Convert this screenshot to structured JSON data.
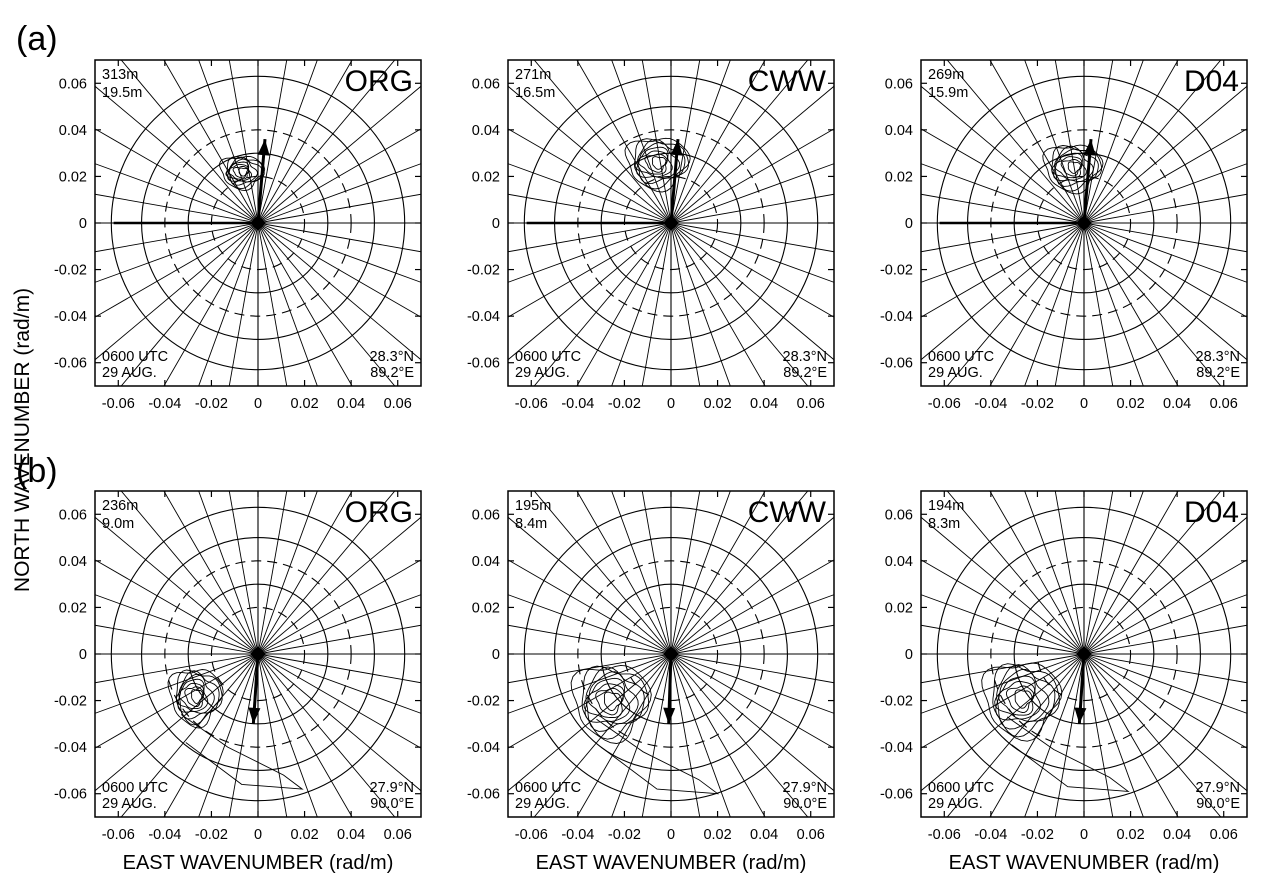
{
  "figure": {
    "ylabel": "NORTH WAVENUMBER (rad/m)",
    "xlabel": "EAST WAVENUMBER (rad/m)",
    "rows": [
      {
        "label": "(a)"
      },
      {
        "label": "(b)"
      }
    ]
  },
  "chart_data": [
    {
      "type": "polar-contour",
      "row": "a",
      "title": "ORG",
      "corner_top": [
        "313m",
        "19.5m"
      ],
      "corner_bottom_left": [
        "0600 UTC",
        "29 AUG."
      ],
      "corner_bottom_right": [
        "28.3°N",
        "89.2°E"
      ],
      "arrow_tip": [
        0.003,
        0.036
      ],
      "extra_ray_end": [
        -0.062,
        0
      ],
      "peak_center": [
        -0.007,
        0.022
      ],
      "spread": [
        0.009,
        0.007
      ],
      "xlim": [
        -0.07,
        0.07
      ],
      "ylim": [
        -0.07,
        0.07
      ],
      "xticks": [
        "-0.06",
        "-0.04",
        "-0.02",
        "0",
        "0.02",
        "0.04",
        "0.06"
      ],
      "yticks": [
        "0.06",
        "0.04",
        "0.02",
        "0",
        "-0.02",
        "-0.04",
        "-0.06"
      ],
      "xlabel": "",
      "ylabel": "NORTH WAVENUMBER (rad/m)"
    },
    {
      "type": "polar-contour",
      "row": "a",
      "title": "CWW",
      "corner_top": [
        "271m",
        "16.5m"
      ],
      "corner_bottom_left": [
        "0600 UTC",
        "29 AUG."
      ],
      "corner_bottom_right": [
        "28.3°N",
        "89.2°E"
      ],
      "arrow_tip": [
        0.003,
        0.036
      ],
      "extra_ray_end": [
        -0.062,
        0
      ],
      "peak_center": [
        -0.006,
        0.026
      ],
      "spread": [
        0.013,
        0.011
      ],
      "xlim": [
        -0.07,
        0.07
      ],
      "ylim": [
        -0.07,
        0.07
      ],
      "xticks": [
        "-0.06",
        "-0.04",
        "-0.02",
        "0",
        "0.02",
        "0.04",
        "0.06"
      ],
      "yticks": [
        "0.06",
        "0.04",
        "0.02",
        "0",
        "-0.02",
        "-0.04",
        "-0.06"
      ],
      "xlabel": "",
      "ylabel": ""
    },
    {
      "type": "polar-contour",
      "row": "a",
      "title": "D04",
      "corner_top": [
        "269m",
        "15.9m"
      ],
      "corner_bottom_left": [
        "0600 UTC",
        "29 AUG."
      ],
      "corner_bottom_right": [
        "28.3°N",
        "89.2°E"
      ],
      "arrow_tip": [
        0.003,
        0.036
      ],
      "extra_ray_end": [
        -0.062,
        0
      ],
      "peak_center": [
        -0.005,
        0.024
      ],
      "spread": [
        0.012,
        0.01
      ],
      "xlim": [
        -0.07,
        0.07
      ],
      "ylim": [
        -0.07,
        0.07
      ],
      "xticks": [
        "-0.06",
        "-0.04",
        "-0.02",
        "0",
        "0.02",
        "0.04",
        "0.06"
      ],
      "yticks": [
        "0.06",
        "0.04",
        "0.02",
        "0",
        "-0.02",
        "-0.04",
        "-0.06"
      ],
      "xlabel": "",
      "ylabel": ""
    },
    {
      "type": "polar-contour",
      "row": "b",
      "title": "ORG",
      "corner_top": [
        "236m",
        "9.0m"
      ],
      "corner_bottom_left": [
        "0600 UTC",
        "29 AUG."
      ],
      "corner_bottom_right": [
        "27.9°N",
        "90.0°E"
      ],
      "arrow_tip": [
        -0.002,
        -0.03
      ],
      "extra_ray_end": null,
      "peak_center": [
        -0.027,
        -0.018
      ],
      "spread": [
        0.011,
        0.012
      ],
      "xlim": [
        -0.07,
        0.07
      ],
      "ylim": [
        -0.07,
        0.07
      ],
      "xticks": [
        "-0.06",
        "-0.04",
        "-0.02",
        "0",
        "0.02",
        "0.04",
        "0.06"
      ],
      "yticks": [
        "0.06",
        "0.04",
        "0.02",
        "0",
        "-0.02",
        "-0.04",
        "-0.06"
      ],
      "xlabel": "EAST WAVENUMBER (rad/m)",
      "ylabel": "NORTH WAVENUMBER (rad/m)"
    },
    {
      "type": "polar-contour",
      "row": "b",
      "title": "CWW",
      "corner_top": [
        "195m",
        "8.4m"
      ],
      "corner_bottom_left": [
        "0600 UTC",
        "29 AUG."
      ],
      "corner_bottom_right": [
        "27.9°N",
        "90.0°E"
      ],
      "arrow_tip": [
        -0.001,
        -0.03
      ],
      "extra_ray_end": null,
      "peak_center": [
        -0.026,
        -0.02
      ],
      "spread": [
        0.016,
        0.016
      ],
      "xlim": [
        -0.07,
        0.07
      ],
      "ylim": [
        -0.07,
        0.07
      ],
      "xticks": [
        "-0.06",
        "-0.04",
        "-0.02",
        "0",
        "0.02",
        "0.04",
        "0.06"
      ],
      "yticks": [
        "0.06",
        "0.04",
        "0.02",
        "0",
        "-0.02",
        "-0.04",
        "-0.06"
      ],
      "xlabel": "EAST WAVENUMBER (rad/m)",
      "ylabel": ""
    },
    {
      "type": "polar-contour",
      "row": "b",
      "title": "D04",
      "corner_top": [
        "194m",
        "8.3m"
      ],
      "corner_bottom_left": [
        "0600 UTC",
        "29 AUG."
      ],
      "corner_bottom_right": [
        "27.9°N",
        "90.0°E"
      ],
      "arrow_tip": [
        -0.002,
        -0.03
      ],
      "extra_ray_end": null,
      "peak_center": [
        -0.027,
        -0.019
      ],
      "spread": [
        0.016,
        0.016
      ],
      "xlim": [
        -0.07,
        0.07
      ],
      "ylim": [
        -0.07,
        0.07
      ],
      "xticks": [
        "-0.06",
        "-0.04",
        "-0.02",
        "0",
        "0.02",
        "0.04",
        "0.06"
      ],
      "yticks": [
        "0.06",
        "0.04",
        "0.02",
        "0",
        "-0.02",
        "-0.04",
        "-0.06"
      ],
      "xlabel": "EAST WAVENUMBER (rad/m)",
      "ylabel": ""
    }
  ],
  "colors": {
    "ink": "#000000",
    "background": "#ffffff"
  }
}
